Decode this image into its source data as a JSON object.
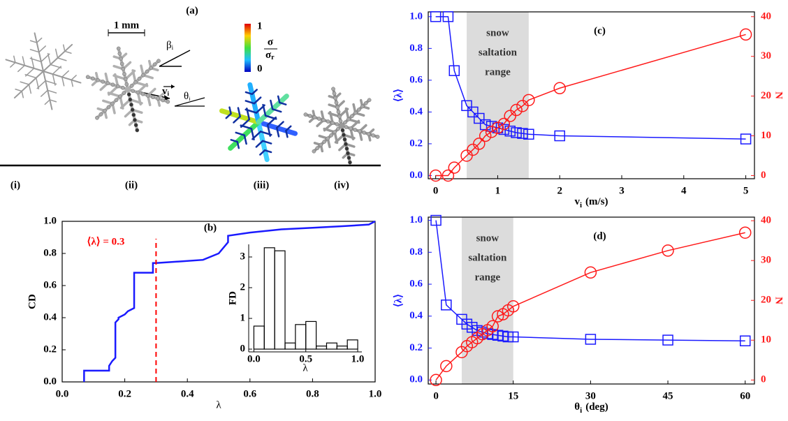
{
  "panel_a": {
    "title": "(a)",
    "scale_bar": "1 mm",
    "beta": {
      "symbol": "β",
      "subscript": "i"
    },
    "velocity": {
      "symbol": "v",
      "subscript": "i"
    },
    "theta": {
      "symbol": "θ",
      "subscript": "i"
    },
    "colorbar": {
      "max": "1",
      "min": "0",
      "numerator": "σ",
      "denominator": {
        "symbol": "σ",
        "subscript": "r"
      }
    },
    "labels": [
      "(i)",
      "(ii)",
      "(iii)",
      "(iv)"
    ]
  },
  "chart_data": [
    {
      "type": "line",
      "title": "(b)",
      "xlabel": "λ",
      "ylabel": "CD",
      "color": "#1a1aff",
      "x": [
        0.07,
        0.07,
        0.15,
        0.15,
        0.16,
        0.17,
        0.17,
        0.18,
        0.18,
        0.2,
        0.21,
        0.22,
        0.23,
        0.23,
        0.29,
        0.29,
        0.3,
        0.45,
        0.5,
        0.53,
        0.53,
        0.6,
        0.7,
        0.8,
        0.9,
        0.98,
        1.0
      ],
      "values": [
        0,
        0.07,
        0.07,
        0.1,
        0.13,
        0.15,
        0.37,
        0.39,
        0.4,
        0.42,
        0.44,
        0.45,
        0.46,
        0.68,
        0.68,
        0.74,
        0.74,
        0.76,
        0.8,
        0.87,
        0.91,
        0.93,
        0.95,
        0.96,
        0.97,
        0.98,
        1.0
      ],
      "vline": 0.3,
      "vline_color": "#ff0000",
      "annotation": "⟨λ⟩ = 0.3",
      "xlim": [
        0,
        1
      ],
      "ylim": [
        0,
        1
      ],
      "xticks": [
        {
          "value": 0,
          "label": "0.0"
        },
        {
          "value": 0.2,
          "label": "0.2"
        },
        {
          "value": 0.4,
          "label": "0.4"
        },
        {
          "value": 0.6,
          "label": "0.6"
        },
        {
          "value": 0.8,
          "label": "0.8"
        },
        {
          "value": 1,
          "label": "1.0"
        }
      ],
      "yticks": [
        {
          "value": 0,
          "label": "0.0"
        },
        {
          "value": 0.2,
          "label": "0.2"
        },
        {
          "value": 0.4,
          "label": "0.4"
        },
        {
          "value": 0.6,
          "label": "0.6"
        },
        {
          "value": 0.8,
          "label": "0.8"
        },
        {
          "value": 1,
          "label": "1.0"
        }
      ]
    },
    {
      "type": "histogram",
      "xlabel": "λ",
      "ylabel": "FD",
      "color": "#000000",
      "bins": [
        0,
        0.1,
        0.2,
        0.3,
        0.4,
        0.5,
        0.6,
        0.7,
        0.8,
        0.9,
        1.0
      ],
      "values": [
        0.75,
        3.3,
        3.2,
        0.2,
        0.8,
        0.9,
        0.1,
        0.2,
        0.1,
        0.3
      ],
      "xlim": [
        -0.05,
        1.04
      ],
      "ylim": [
        -0.09,
        3.41
      ],
      "xticks": [
        {
          "value": 0,
          "label": "0.0"
        },
        {
          "value": 0.5,
          "label": "0.5"
        },
        {
          "value": 1,
          "label": "1.0"
        }
      ],
      "yticks": [
        0,
        1,
        2,
        3
      ]
    },
    {
      "type": "line",
      "title": "(c)",
      "xlabel": {
        "symbol": "v",
        "subscript": "i",
        "unit": "(m/s)"
      },
      "ylabel": "⟨λ⟩",
      "y2label": "N",
      "x": [
        0,
        0.2,
        0.3,
        0.5,
        0.6,
        0.7,
        0.8,
        0.9,
        1.0,
        1.1,
        1.2,
        1.3,
        1.4,
        1.5,
        2,
        5
      ],
      "series": [
        {
          "color": "#1a1aff",
          "marker": "square",
          "values": [
            1.0,
            1.0,
            0.66,
            0.44,
            0.4,
            0.36,
            0.32,
            0.31,
            0.3,
            0.29,
            0.28,
            0.27,
            0.265,
            0.26,
            0.25,
            0.23
          ]
        },
        {
          "color": "#ff1a1a",
          "marker": "circle",
          "axis": "y2",
          "values": [
            0,
            0,
            2,
            5,
            6.5,
            8,
            10,
            11,
            12,
            13,
            15,
            16.5,
            17.5,
            19,
            22,
            35.5
          ]
        }
      ],
      "shade": [
        0.5,
        1.5
      ],
      "shade_color": "#dcdcdc",
      "shade_label": [
        "snow",
        "saltation",
        "range"
      ],
      "xlim": [
        -0.12,
        5.14
      ],
      "ylim": [
        -0.02,
        1.03
      ],
      "y2lim": [
        -0.8,
        41.2
      ],
      "xticks": [
        0,
        1,
        2,
        3,
        4,
        5
      ],
      "yticks": [
        {
          "value": 0,
          "label": "0.0"
        },
        {
          "value": 0.2,
          "label": "0.2"
        },
        {
          "value": 0.4,
          "label": "0.4"
        },
        {
          "value": 0.6,
          "label": "0.6"
        },
        {
          "value": 0.8,
          "label": "0.8"
        },
        {
          "value": 1,
          "label": "1.0"
        }
      ],
      "y2ticks": [
        0,
        10,
        20,
        30,
        40
      ]
    },
    {
      "type": "line",
      "title": "(d)",
      "xlabel": {
        "symbol": "θ",
        "subscript": "i",
        "unit": "(deg)"
      },
      "ylabel": "⟨λ⟩",
      "y2label": "N",
      "x": [
        0,
        2,
        5,
        6,
        7,
        8,
        9,
        10,
        11,
        12,
        13,
        14,
        15,
        30,
        45,
        60
      ],
      "series": [
        {
          "color": "#1a1aff",
          "marker": "square",
          "values": [
            1.0,
            0.47,
            0.38,
            0.35,
            0.33,
            0.31,
            0.3,
            0.29,
            0.285,
            0.28,
            0.275,
            0.27,
            0.27,
            0.255,
            0.25,
            0.245
          ]
        },
        {
          "color": "#ff1a1a",
          "marker": "circle",
          "axis": "y2",
          "values": [
            0,
            3.5,
            7,
            8.5,
            9.5,
            10.5,
            11.5,
            12.5,
            13.5,
            16,
            16.5,
            17.5,
            18.5,
            27,
            32.5,
            37
          ]
        }
      ],
      "shade": [
        5,
        15
      ],
      "shade_color": "#dcdcdc",
      "shade_label": [
        "snow",
        "saltation",
        "range"
      ],
      "xlim": [
        -1.5,
        61.8
      ],
      "ylim": [
        -0.025,
        1.02
      ],
      "y2lim": [
        -1,
        40.9
      ],
      "xticks": [
        0,
        15,
        30,
        45,
        60
      ],
      "yticks": [
        {
          "value": 0,
          "label": "0.0"
        },
        {
          "value": 0.2,
          "label": "0.2"
        },
        {
          "value": 0.4,
          "label": "0.4"
        },
        {
          "value": 0.6,
          "label": "0.6"
        },
        {
          "value": 0.8,
          "label": "0.8"
        },
        {
          "value": 1,
          "label": "1.0"
        }
      ],
      "y2ticks": [
        0,
        10,
        20,
        30,
        40
      ]
    }
  ]
}
